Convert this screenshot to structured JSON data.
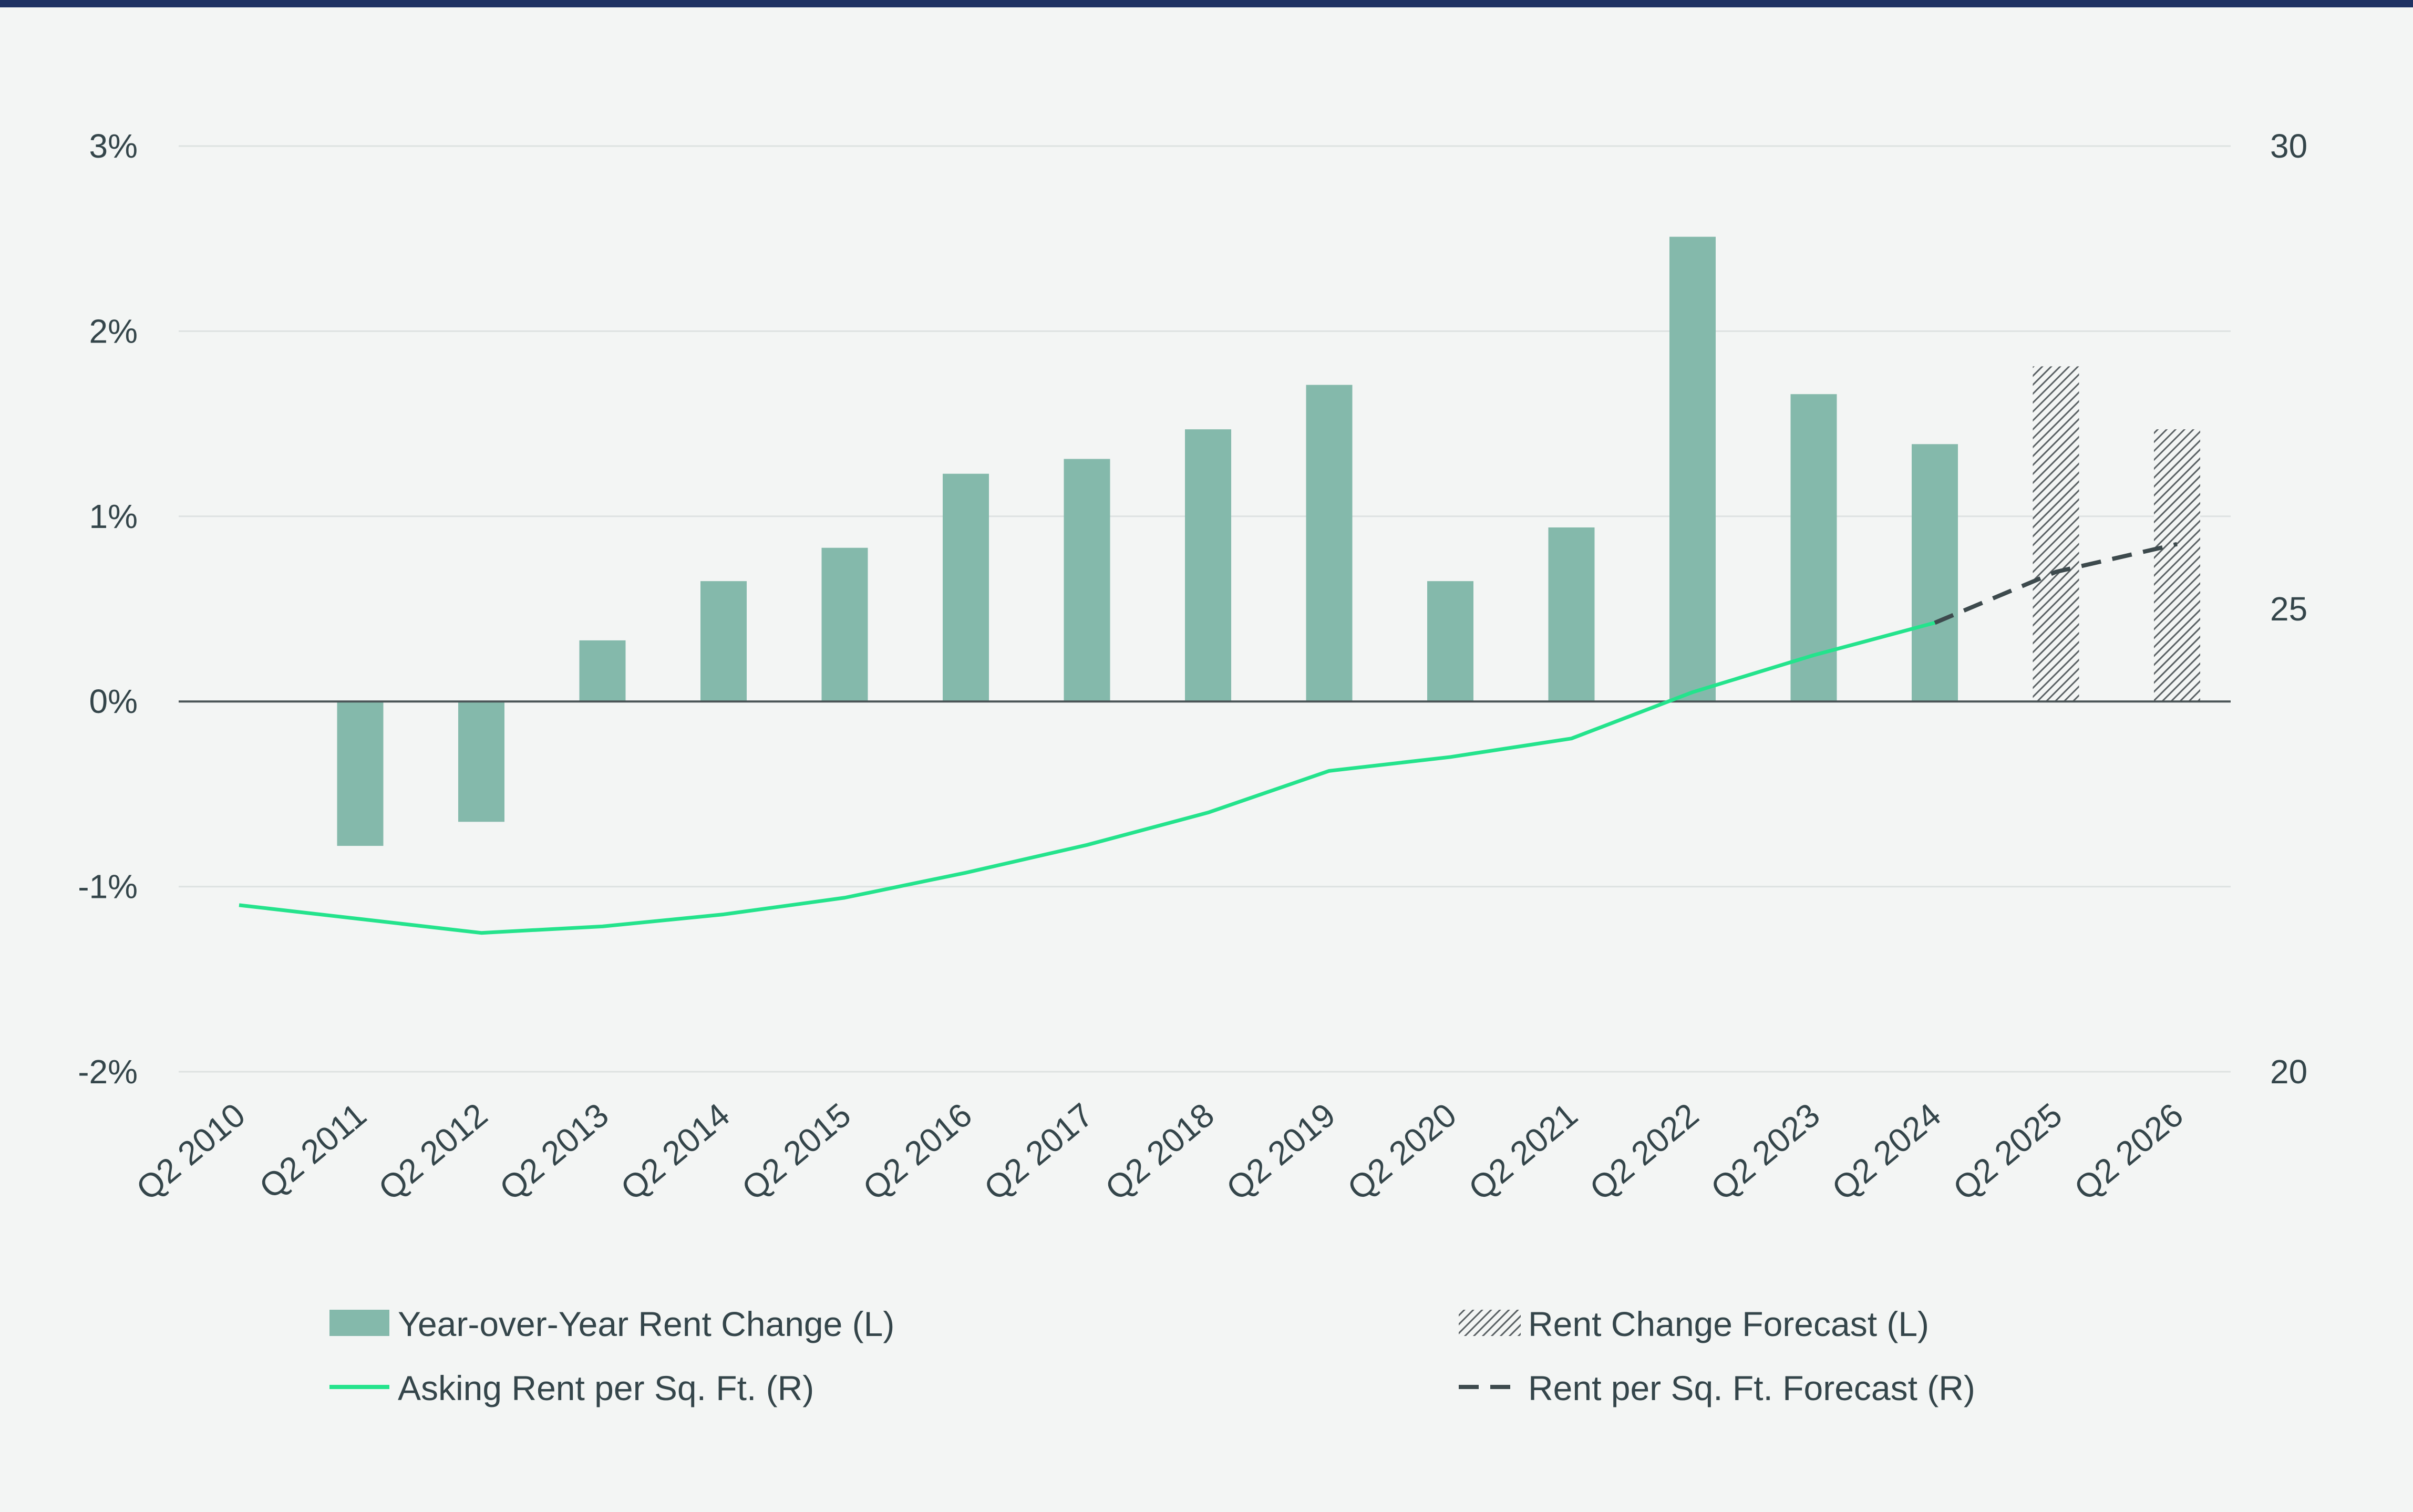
{
  "colors": {
    "bar": "#84b9ab",
    "asking_rent_line": "#24e38c",
    "forecast_line": "#3d4a4d",
    "forecast_bar_hatch": "#5a6164",
    "text": "#34454a",
    "grid": "#dde2e1",
    "zero_line": "#4a5456",
    "top_rule": "#1f3263",
    "background": "#f3f5f4"
  },
  "chart_data": {
    "type": "bar+line",
    "title": "",
    "xlabel": "",
    "ylabel_left": "",
    "ylabel_right": "",
    "categories": [
      "Q2 2010",
      "Q2 2011",
      "Q2 2012",
      "Q2 2013",
      "Q2 2014",
      "Q2 2015",
      "Q2 2016",
      "Q2 2017",
      "Q2 2018",
      "Q2 2019",
      "Q2 2020",
      "Q2 2021",
      "Q2 2022",
      "Q2 2023",
      "Q2 2024",
      "Q2 2025",
      "Q2 2026"
    ],
    "y_left": {
      "min": -2,
      "max": 3,
      "ticks": [
        3,
        2,
        1,
        0,
        -1,
        -2
      ],
      "tick_labels": [
        "3%",
        "2%",
        "1%",
        "0%",
        "-1%",
        "-2%"
      ]
    },
    "y_right": {
      "min": 20,
      "max": 30,
      "ticks": [
        30,
        25,
        20
      ],
      "tick_labels": [
        "30",
        "25",
        "20"
      ]
    },
    "grid": true,
    "series": [
      {
        "name": "Year-over-Year Rent Change (L)",
        "type": "bar",
        "axis": "left",
        "values": [
          null,
          -0.78,
          -0.65,
          0.33,
          0.65,
          0.83,
          1.23,
          1.31,
          1.47,
          1.71,
          0.65,
          0.94,
          2.51,
          1.66,
          1.39,
          null,
          null
        ]
      },
      {
        "name": "Rent Change Forecast (L)",
        "type": "bar",
        "axis": "left",
        "style": "hatched",
        "values": [
          null,
          null,
          null,
          null,
          null,
          null,
          null,
          null,
          null,
          null,
          null,
          null,
          null,
          null,
          null,
          1.81,
          1.47
        ]
      },
      {
        "name": "Asking Rent per Sq. Ft. (R)",
        "type": "line",
        "axis": "right",
        "values": [
          21.8,
          21.65,
          21.5,
          21.57,
          21.7,
          21.88,
          22.15,
          22.45,
          22.8,
          23.25,
          23.4,
          23.6,
          24.1,
          24.5,
          24.85,
          null,
          null
        ]
      },
      {
        "name": "Rent per Sq. Ft. Forecast (R)",
        "type": "line",
        "axis": "right",
        "style": "dashed",
        "values": [
          null,
          null,
          null,
          null,
          null,
          null,
          null,
          null,
          null,
          null,
          null,
          null,
          null,
          null,
          24.85,
          25.4,
          25.7
        ]
      }
    ],
    "legend": {
      "placement": "bottom",
      "items": [
        {
          "label": "Year-over-Year Rent Change (L)",
          "marker": "bar"
        },
        {
          "label": "Rent Change Forecast (L)",
          "marker": "hatched-bar"
        },
        {
          "label": "Asking Rent per Sq. Ft. (R)",
          "marker": "line"
        },
        {
          "label": "Rent per Sq. Ft. Forecast (R)",
          "marker": "dashed-line"
        }
      ]
    }
  }
}
